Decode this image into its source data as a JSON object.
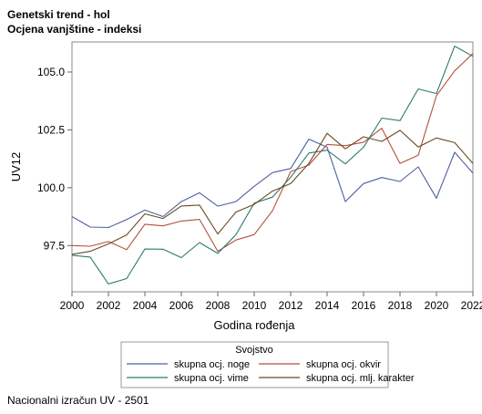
{
  "title_lines": [
    "Genetski trend - hol",
    "Ocjena vanjštine - indeksi"
  ],
  "footnote": "Nacionalni izračun UV - 2501",
  "chart_data": {
    "type": "line",
    "xlabel": "Godina rođenja",
    "ylabel": "UV12",
    "xlim": [
      2000,
      2022
    ],
    "ylim": [
      95.5,
      106.3
    ],
    "x_ticks": [
      2000,
      2002,
      2004,
      2006,
      2008,
      2010,
      2012,
      2014,
      2016,
      2018,
      2020,
      2022
    ],
    "y_ticks": [
      97.5,
      100.0,
      102.5,
      105.0
    ],
    "y_tick_labels": [
      "97.5",
      "100.0",
      "102.5",
      "105.0"
    ],
    "legend_title": "Svojstvo",
    "legend_position": "bottom",
    "x": [
      2000,
      2001,
      2002,
      2003,
      2004,
      2005,
      2006,
      2007,
      2008,
      2009,
      2010,
      2011,
      2012,
      2013,
      2014,
      2015,
      2016,
      2017,
      2018,
      2019,
      2020,
      2021,
      2022
    ],
    "series": [
      {
        "name": "skupna ocj. noge",
        "color": "#4f5fa0",
        "values": [
          98.75,
          98.3,
          98.28,
          98.62,
          99.03,
          98.75,
          99.4,
          99.78,
          99.2,
          99.4,
          100.06,
          100.65,
          100.83,
          102.1,
          101.75,
          99.4,
          100.18,
          100.44,
          100.27,
          100.9,
          99.55,
          101.53,
          100.63
        ]
      },
      {
        "name": "skupna ocj. okvir",
        "color": "#b4503c",
        "values": [
          97.5,
          97.47,
          97.67,
          97.32,
          98.42,
          98.35,
          98.56,
          98.63,
          97.25,
          97.74,
          97.97,
          99.0,
          100.7,
          100.98,
          101.87,
          101.82,
          101.96,
          102.57,
          101.05,
          101.4,
          103.98,
          105.05,
          105.8
        ]
      },
      {
        "name": "skupna ocj. vime",
        "color": "#2e7a6e",
        "values": [
          97.08,
          97.0,
          95.84,
          96.07,
          97.35,
          97.34,
          96.98,
          97.63,
          97.16,
          97.97,
          99.33,
          99.59,
          100.45,
          101.5,
          101.62,
          101.03,
          101.75,
          103.01,
          102.9,
          104.27,
          104.07,
          106.12,
          105.68
        ]
      },
      {
        "name": "skupna ocj. mlj. karakter",
        "color": "#6b4a22",
        "values": [
          97.12,
          97.25,
          97.57,
          97.96,
          98.87,
          98.67,
          99.21,
          99.25,
          98.0,
          98.95,
          99.28,
          99.85,
          100.18,
          101.05,
          102.35,
          101.68,
          102.2,
          102.0,
          102.48,
          101.76,
          102.15,
          101.95,
          101.05
        ]
      }
    ]
  }
}
